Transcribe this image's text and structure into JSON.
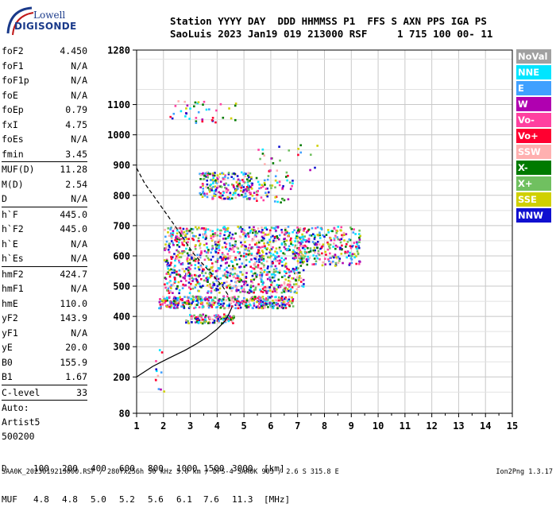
{
  "logo": {
    "line1": "Lowell",
    "line2": "DIGISONDE"
  },
  "header": {
    "line1": "Station YYYY DAY  DDD HHMMSS P1  FFS S AXN PPS IGA PS",
    "line2": "SaoLuis 2023 Jan19 019 213000 RSF     1 715 100 00- 11"
  },
  "params": {
    "group1": [
      {
        "label": "foF2",
        "value": "4.450"
      },
      {
        "label": "foF1",
        "value": "N/A"
      },
      {
        "label": "foF1p",
        "value": "N/A"
      },
      {
        "label": "foE",
        "value": "N/A"
      },
      {
        "label": "foEp",
        "value": "0.79"
      },
      {
        "label": "fxI",
        "value": "4.75"
      },
      {
        "label": "foEs",
        "value": "N/A"
      },
      {
        "label": "fmin",
        "value": "3.45"
      }
    ],
    "group2": [
      {
        "label": "MUF(D)",
        "value": "11.28"
      },
      {
        "label": "M(D)",
        "value": "2.54"
      },
      {
        "label": "D",
        "value": "N/A"
      }
    ],
    "group3": [
      {
        "label": "h`F",
        "value": "445.0"
      },
      {
        "label": "h`F2",
        "value": "445.0"
      },
      {
        "label": "h`E",
        "value": "N/A"
      },
      {
        "label": "h`Es",
        "value": "N/A"
      }
    ],
    "group4": [
      {
        "label": "hmF2",
        "value": "424.7"
      },
      {
        "label": "hmF1",
        "value": "N/A"
      },
      {
        "label": "hmE",
        "value": "110.0"
      },
      {
        "label": "yF2",
        "value": "143.9"
      },
      {
        "label": "yF1",
        "value": "N/A"
      },
      {
        "label": "yE",
        "value": "20.0"
      },
      {
        "label": "B0",
        "value": "155.9"
      },
      {
        "label": "B1",
        "value": "1.67"
      }
    ],
    "group5": [
      {
        "label": "C-level",
        "value": "33"
      }
    ],
    "scaling": [
      "Auto:",
      "Artist5",
      "500200"
    ]
  },
  "legend": [
    {
      "label": "NoVal",
      "color": "#a0a0a0"
    },
    {
      "label": "NNE",
      "color": "#00e5ff"
    },
    {
      "label": "E",
      "color": "#40a0ff"
    },
    {
      "label": "W",
      "color": "#b000b0"
    },
    {
      "label": "Vo-",
      "color": "#ff40a0"
    },
    {
      "label": "Vo+",
      "color": "#ff0030"
    },
    {
      "label": "SSW",
      "color": "#ffb0b0"
    },
    {
      "label": "X-",
      "color": "#007a00"
    },
    {
      "label": "X+",
      "color": "#70c060"
    },
    {
      "label": "SSE",
      "color": "#d0d000"
    },
    {
      "label": "NNW",
      "color": "#1010d0"
    }
  ],
  "chart_data": {
    "type": "scatter",
    "title": "",
    "xlabel": "",
    "ylabel": "",
    "xlim": [
      1,
      15
    ],
    "ylim": [
      80,
      1280
    ],
    "x_ticks": [
      "1",
      "2",
      "3",
      "4",
      "5",
      "6",
      "7",
      "8",
      "9",
      "10",
      "11",
      "12",
      "13",
      "14",
      "15"
    ],
    "y_ticks": [
      "80",
      "200",
      "300",
      "400",
      "500",
      "600",
      "700",
      "800",
      "900",
      "1000",
      "1100",
      "1280"
    ],
    "grid": true,
    "clusters": [
      {
        "name": "F-trace low",
        "x_range": [
          2.8,
          4.6
        ],
        "y_range": [
          380,
          410
        ],
        "density": 120
      },
      {
        "name": "F-trace main lower",
        "x_range": [
          1.8,
          6.8
        ],
        "y_range": [
          430,
          470
        ],
        "density": 420
      },
      {
        "name": "F-trace main",
        "x_range": [
          2.0,
          7.2
        ],
        "y_range": [
          480,
          700
        ],
        "density": 1100
      },
      {
        "name": "F-trace right",
        "x_range": [
          7.0,
          9.3
        ],
        "y_range": [
          570,
          700
        ],
        "density": 260
      },
      {
        "name": "second hop",
        "x_range": [
          3.3,
          5.3
        ],
        "y_range": [
          790,
          880
        ],
        "density": 230
      },
      {
        "name": "second hop tail",
        "x_range": [
          5.3,
          6.8
        ],
        "y_range": [
          780,
          880
        ],
        "density": 60
      },
      {
        "name": "third hop",
        "x_range": [
          2.2,
          4.8
        ],
        "y_range": [
          1040,
          1120
        ],
        "density": 40
      },
      {
        "name": "sparse high",
        "x_range": [
          5.5,
          7.8
        ],
        "y_range": [
          880,
          970
        ],
        "density": 25
      },
      {
        "name": "sparse low",
        "x_range": [
          1.6,
          2.0
        ],
        "y_range": [
          140,
          300
        ],
        "density": 12
      }
    ],
    "profile_solid": [
      [
        1.0,
        200
      ],
      [
        1.6,
        235
      ],
      [
        2.2,
        262
      ],
      [
        2.8,
        288
      ],
      [
        3.2,
        308
      ],
      [
        3.6,
        330
      ],
      [
        4.0,
        358
      ],
      [
        4.3,
        385
      ],
      [
        4.45,
        410
      ],
      [
        4.55,
        430
      ]
    ],
    "profile_dashed": [
      [
        1.0,
        890
      ],
      [
        1.3,
        840
      ],
      [
        1.7,
        790
      ],
      [
        2.1,
        740
      ],
      [
        2.5,
        690
      ],
      [
        2.8,
        650
      ],
      [
        3.1,
        610
      ],
      [
        3.4,
        580
      ],
      [
        3.8,
        540
      ],
      [
        4.2,
        500
      ],
      [
        4.45,
        465
      ]
    ]
  },
  "dfreq": {
    "d_label": "D",
    "muf_label": "MUF",
    "d_values": [
      "100",
      "200",
      "400",
      "600",
      "800",
      "1000",
      "1500",
      "3000",
      "[km]"
    ],
    "muf_values": [
      "4.8",
      "4.8",
      "5.0",
      "5.2",
      "5.6",
      "6.1",
      "7.6",
      "11.3",
      "[MHz]"
    ]
  },
  "footer": {
    "left": "SAA0K_2023019213000.RSF / 280fx256h 50 kHz 5.0 km / DPS-4 SAA0K 903 / 2.6 S 315.8 E",
    "right": "Ion2Png 1.3.17"
  }
}
